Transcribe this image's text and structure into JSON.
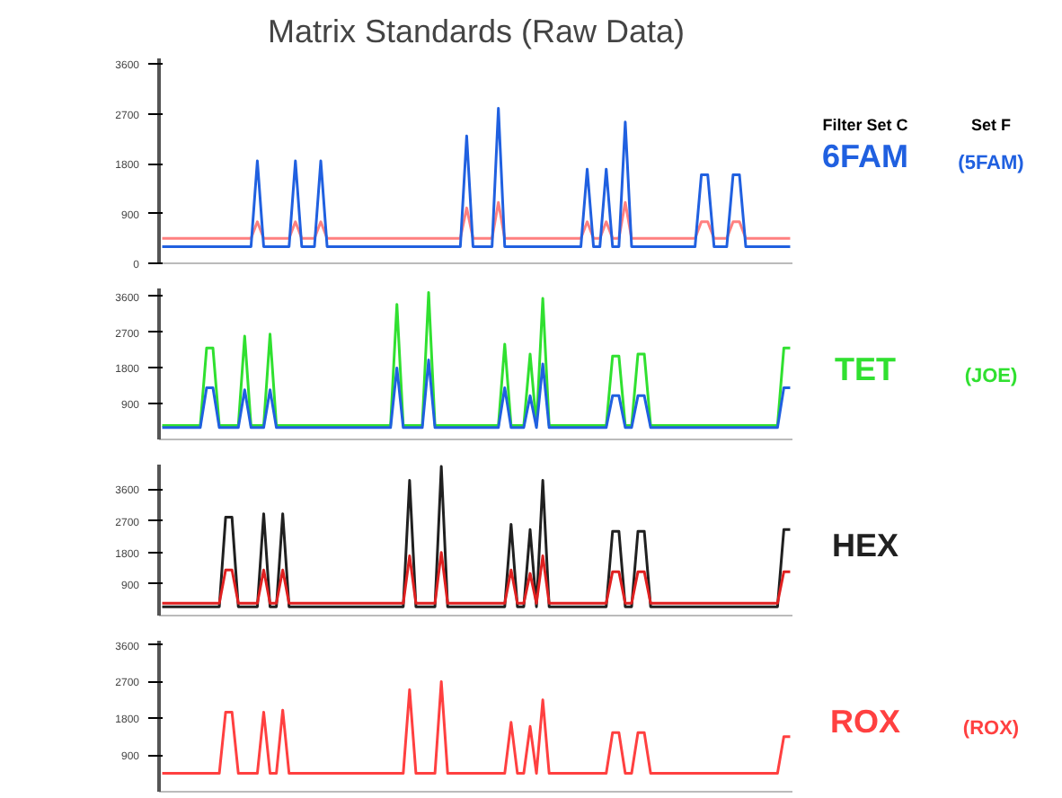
{
  "chart_data": [
    {
      "type": "line",
      "title": "Matrix Standards (Raw Data)",
      "annotations": [
        "Filter Set C",
        "Set F",
        "6FAM",
        "(5FAM)"
      ],
      "tick_labels": "y",
      "grid": false,
      "ylim": [
        0,
        3700
      ],
      "yticks": [
        0,
        900,
        1800,
        2700,
        3600
      ],
      "categories": [
        null,
        null,
        null,
        null,
        null,
        null,
        null,
        null,
        null,
        null,
        null,
        null,
        null,
        null,
        null,
        null,
        null,
        null,
        null,
        null,
        null,
        null,
        null,
        null,
        null,
        null,
        null,
        null,
        null,
        null,
        null,
        null,
        null,
        null,
        null,
        null,
        null,
        null,
        null,
        null,
        null,
        null,
        null,
        null,
        null,
        null,
        null,
        null,
        null,
        null,
        null,
        null,
        null,
        null,
        null,
        null,
        null,
        null,
        null,
        null,
        null,
        null,
        null,
        null,
        null,
        null,
        null,
        null,
        null,
        null,
        null,
        null,
        null,
        null,
        null,
        null,
        null,
        null,
        null,
        null,
        null,
        null,
        null,
        null,
        null,
        null,
        null,
        null,
        null,
        null,
        null,
        null,
        null,
        null,
        null,
        null,
        null,
        null,
        null,
        null
      ],
      "series": [
        {
          "color": "#ff8080",
          "values": [
            450,
            450,
            450,
            450,
            450,
            450,
            450,
            450,
            450,
            450,
            450,
            450,
            450,
            450,
            450,
            750,
            450,
            450,
            450,
            450,
            450,
            750,
            450,
            450,
            450,
            750,
            450,
            450,
            450,
            450,
            450,
            450,
            450,
            450,
            450,
            450,
            450,
            450,
            450,
            450,
            450,
            450,
            450,
            450,
            450,
            450,
            450,
            450,
            1000,
            450,
            450,
            450,
            450,
            1100,
            450,
            450,
            450,
            450,
            450,
            450,
            450,
            450,
            450,
            450,
            450,
            450,
            450,
            750,
            450,
            450,
            750,
            450,
            450,
            1100,
            450,
            450,
            450,
            450,
            450,
            450,
            450,
            450,
            450,
            450,
            450,
            750,
            750,
            450,
            450,
            450,
            750,
            750,
            450,
            450,
            450,
            450,
            450,
            450,
            450,
            450
          ]
        },
        {
          "color": "#2060e0",
          "values": [
            300,
            300,
            300,
            300,
            300,
            300,
            300,
            300,
            300,
            300,
            300,
            300,
            300,
            300,
            300,
            1850,
            300,
            300,
            300,
            300,
            300,
            1850,
            300,
            300,
            300,
            1850,
            300,
            300,
            300,
            300,
            300,
            300,
            300,
            300,
            300,
            300,
            300,
            300,
            300,
            300,
            300,
            300,
            300,
            300,
            300,
            300,
            300,
            300,
            2300,
            300,
            300,
            300,
            300,
            2800,
            300,
            300,
            300,
            300,
            300,
            300,
            300,
            300,
            300,
            300,
            300,
            300,
            300,
            1700,
            300,
            300,
            1700,
            300,
            300,
            2550,
            300,
            300,
            300,
            300,
            300,
            300,
            300,
            300,
            300,
            300,
            300,
            1600,
            1600,
            300,
            300,
            300,
            1600,
            1600,
            300,
            300,
            300,
            300,
            300,
            300,
            300,
            300
          ]
        }
      ]
    },
    {
      "type": "line",
      "annotations": [
        "TET",
        "(JOE)"
      ],
      "tick_labels": "y",
      "grid": false,
      "ylim": [
        0,
        3800
      ],
      "yticks": [
        900,
        1800,
        2700,
        3600
      ],
      "categories": [
        null,
        null,
        null,
        null,
        null,
        null,
        null,
        null,
        null,
        null,
        null,
        null,
        null,
        null,
        null,
        null,
        null,
        null,
        null,
        null,
        null,
        null,
        null,
        null,
        null,
        null,
        null,
        null,
        null,
        null,
        null,
        null,
        null,
        null,
        null,
        null,
        null,
        null,
        null,
        null,
        null,
        null,
        null,
        null,
        null,
        null,
        null,
        null,
        null,
        null,
        null,
        null,
        null,
        null,
        null,
        null,
        null,
        null,
        null,
        null,
        null,
        null,
        null,
        null,
        null,
        null,
        null,
        null,
        null,
        null,
        null,
        null,
        null,
        null,
        null,
        null,
        null,
        null,
        null,
        null,
        null,
        null,
        null,
        null,
        null,
        null,
        null,
        null,
        null,
        null,
        null,
        null,
        null,
        null,
        null,
        null,
        null,
        null,
        null,
        null
      ],
      "series": [
        {
          "color": "#30e030",
          "values": [
            350,
            350,
            350,
            350,
            350,
            350,
            350,
            2300,
            2300,
            350,
            350,
            350,
            350,
            2600,
            350,
            350,
            350,
            2650,
            350,
            350,
            350,
            350,
            350,
            350,
            350,
            350,
            350,
            350,
            350,
            350,
            350,
            350,
            350,
            350,
            350,
            350,
            350,
            3400,
            350,
            350,
            350,
            350,
            3700,
            350,
            350,
            350,
            350,
            350,
            350,
            350,
            350,
            350,
            350,
            350,
            2400,
            350,
            350,
            350,
            2150,
            350,
            3550,
            350,
            350,
            350,
            350,
            350,
            350,
            350,
            350,
            350,
            350,
            2100,
            2100,
            350,
            350,
            2150,
            2150,
            350,
            350,
            350,
            350,
            350,
            350,
            350,
            350,
            350,
            350,
            350,
            350,
            350,
            350,
            350,
            350,
            350,
            350,
            350,
            350,
            350,
            2300,
            2300
          ]
        },
        {
          "color": "#2060e0",
          "values": [
            300,
            300,
            300,
            300,
            300,
            300,
            300,
            1300,
            1300,
            300,
            300,
            300,
            300,
            1250,
            300,
            300,
            300,
            1250,
            300,
            300,
            300,
            300,
            300,
            300,
            300,
            300,
            300,
            300,
            300,
            300,
            300,
            300,
            300,
            300,
            300,
            300,
            300,
            1800,
            300,
            300,
            300,
            300,
            2000,
            300,
            300,
            300,
            300,
            300,
            300,
            300,
            300,
            300,
            300,
            300,
            1300,
            300,
            300,
            300,
            1100,
            300,
            1900,
            300,
            300,
            300,
            300,
            300,
            300,
            300,
            300,
            300,
            300,
            1100,
            1100,
            300,
            300,
            1100,
            1100,
            300,
            300,
            300,
            300,
            300,
            300,
            300,
            300,
            300,
            300,
            300,
            300,
            300,
            300,
            300,
            300,
            300,
            300,
            300,
            300,
            300,
            1300,
            1300
          ]
        }
      ]
    },
    {
      "type": "line",
      "annotations": [
        "HEX"
      ],
      "tick_labels": "y",
      "grid": false,
      "ylim": [
        0,
        4300
      ],
      "yticks": [
        900,
        1800,
        2700,
        3600
      ],
      "categories": [
        null,
        null,
        null,
        null,
        null,
        null,
        null,
        null,
        null,
        null,
        null,
        null,
        null,
        null,
        null,
        null,
        null,
        null,
        null,
        null,
        null,
        null,
        null,
        null,
        null,
        null,
        null,
        null,
        null,
        null,
        null,
        null,
        null,
        null,
        null,
        null,
        null,
        null,
        null,
        null,
        null,
        null,
        null,
        null,
        null,
        null,
        null,
        null,
        null,
        null,
        null,
        null,
        null,
        null,
        null,
        null,
        null,
        null,
        null,
        null,
        null,
        null,
        null,
        null,
        null,
        null,
        null,
        null,
        null,
        null,
        null,
        null,
        null,
        null,
        null,
        null,
        null,
        null,
        null,
        null,
        null,
        null,
        null,
        null,
        null,
        null,
        null,
        null,
        null,
        null,
        null,
        null,
        null,
        null,
        null,
        null,
        null,
        null,
        null,
        null
      ],
      "series": [
        {
          "color": "#202020",
          "values": [
            250,
            250,
            250,
            250,
            250,
            250,
            250,
            250,
            250,
            250,
            2800,
            2800,
            250,
            250,
            250,
            250,
            2900,
            250,
            250,
            2900,
            250,
            250,
            250,
            250,
            250,
            250,
            250,
            250,
            250,
            250,
            250,
            250,
            250,
            250,
            250,
            250,
            250,
            250,
            250,
            3850,
            250,
            250,
            250,
            250,
            4250,
            250,
            250,
            250,
            250,
            250,
            250,
            250,
            250,
            250,
            250,
            2600,
            250,
            250,
            2450,
            250,
            3850,
            250,
            250,
            250,
            250,
            250,
            250,
            250,
            250,
            250,
            250,
            2400,
            2400,
            250,
            250,
            2400,
            2400,
            250,
            250,
            250,
            250,
            250,
            250,
            250,
            250,
            250,
            250,
            250,
            250,
            250,
            250,
            250,
            250,
            250,
            250,
            250,
            250,
            250,
            2450,
            2450
          ]
        },
        {
          "color": "#e02020",
          "values": [
            350,
            350,
            350,
            350,
            350,
            350,
            350,
            350,
            350,
            350,
            1300,
            1300,
            350,
            350,
            350,
            350,
            1300,
            350,
            350,
            1300,
            350,
            350,
            350,
            350,
            350,
            350,
            350,
            350,
            350,
            350,
            350,
            350,
            350,
            350,
            350,
            350,
            350,
            350,
            350,
            1700,
            350,
            350,
            350,
            350,
            1800,
            350,
            350,
            350,
            350,
            350,
            350,
            350,
            350,
            350,
            350,
            1300,
            350,
            350,
            1200,
            350,
            1700,
            350,
            350,
            350,
            350,
            350,
            350,
            350,
            350,
            350,
            350,
            1250,
            1250,
            350,
            350,
            1250,
            1250,
            350,
            350,
            350,
            350,
            350,
            350,
            350,
            350,
            350,
            350,
            350,
            350,
            350,
            350,
            350,
            350,
            350,
            350,
            350,
            350,
            350,
            1250,
            1250
          ]
        }
      ]
    },
    {
      "type": "line",
      "annotations": [
        "ROX",
        "(ROX)"
      ],
      "tick_labels": "y",
      "grid": false,
      "ylim": [
        0,
        3700
      ],
      "yticks": [
        900,
        1800,
        2700,
        3600
      ],
      "categories": [
        null,
        null,
        null,
        null,
        null,
        null,
        null,
        null,
        null,
        null,
        null,
        null,
        null,
        null,
        null,
        null,
        null,
        null,
        null,
        null,
        null,
        null,
        null,
        null,
        null,
        null,
        null,
        null,
        null,
        null,
        null,
        null,
        null,
        null,
        null,
        null,
        null,
        null,
        null,
        null,
        null,
        null,
        null,
        null,
        null,
        null,
        null,
        null,
        null,
        null,
        null,
        null,
        null,
        null,
        null,
        null,
        null,
        null,
        null,
        null,
        null,
        null,
        null,
        null,
        null,
        null,
        null,
        null,
        null,
        null,
        null,
        null,
        null,
        null,
        null,
        null,
        null,
        null,
        null,
        null,
        null,
        null,
        null,
        null,
        null,
        null,
        null,
        null,
        null,
        null,
        null,
        null,
        null,
        null,
        null,
        null,
        null,
        null,
        null,
        null
      ],
      "series": [
        {
          "color": "#ff4040",
          "values": [
            450,
            450,
            450,
            450,
            450,
            450,
            450,
            450,
            450,
            450,
            1950,
            1950,
            450,
            450,
            450,
            450,
            1950,
            450,
            450,
            2000,
            450,
            450,
            450,
            450,
            450,
            450,
            450,
            450,
            450,
            450,
            450,
            450,
            450,
            450,
            450,
            450,
            450,
            450,
            450,
            2500,
            450,
            450,
            450,
            450,
            2700,
            450,
            450,
            450,
            450,
            450,
            450,
            450,
            450,
            450,
            450,
            1700,
            450,
            450,
            1600,
            450,
            2250,
            450,
            450,
            450,
            450,
            450,
            450,
            450,
            450,
            450,
            450,
            1450,
            1450,
            450,
            450,
            1450,
            1450,
            450,
            450,
            450,
            450,
            450,
            450,
            450,
            450,
            450,
            450,
            450,
            450,
            450,
            450,
            450,
            450,
            450,
            450,
            450,
            450,
            450,
            1350,
            1350
          ]
        }
      ]
    }
  ]
}
